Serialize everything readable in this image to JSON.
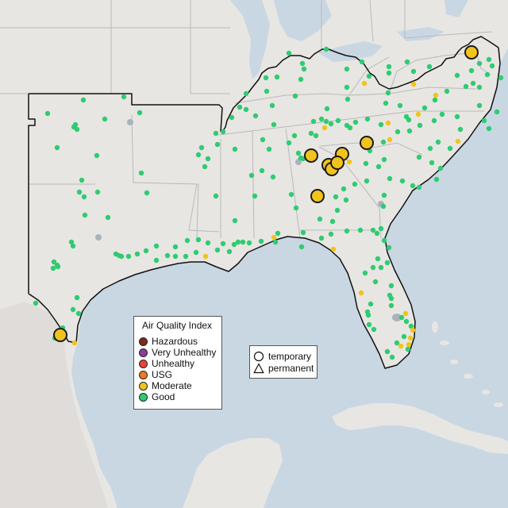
{
  "colors": {
    "ocean": "#c9d7e3",
    "land": "#e8e6e3",
    "land_hills": "#dcdad6",
    "state_border": "#b9b9b9",
    "region_border": "#111111",
    "water_gray": "#a8b3bd"
  },
  "legend": {
    "title": "Air Quality Index",
    "items": [
      {
        "label": "Hazardous",
        "color": "#7e2a1e"
      },
      {
        "label": "Very Unhealthy",
        "color": "#8f3f97"
      },
      {
        "label": "Unhealthy",
        "color": "#e8423a"
      },
      {
        "label": "USG",
        "color": "#f07a1f"
      },
      {
        "label": "Moderate",
        "color": "#f2c31c"
      },
      {
        "label": "Good",
        "color": "#2ecc71"
      }
    ]
  },
  "type_legend": {
    "items": [
      {
        "label": "temporary",
        "icon": "circle-outline-icon"
      },
      {
        "label": "permanent",
        "icon": "triangle-outline-icon"
      }
    ]
  },
  "monitors_good": [
    [
      60,
      143
    ],
    [
      105,
      126
    ],
    [
      132,
      150
    ],
    [
      156,
      122
    ],
    [
      176,
      142
    ],
    [
      93,
      160
    ],
    [
      95,
      157
    ],
    [
      97,
      163
    ],
    [
      72,
      186
    ],
    [
      122,
      196
    ],
    [
      178,
      218
    ],
    [
      103,
      227
    ],
    [
      100,
      242
    ],
    [
      123,
      242
    ],
    [
      106,
      248
    ],
    [
      185,
      243
    ],
    [
      136,
      274
    ],
    [
      107,
      271
    ],
    [
      90,
      305
    ],
    [
      92,
      310
    ],
    [
      68,
      330
    ],
    [
      72,
      334
    ],
    [
      73,
      336
    ],
    [
      67,
      338
    ],
    [
      146,
      320
    ],
    [
      150,
      322
    ],
    [
      153,
      323
    ],
    [
      173,
      320
    ],
    [
      184,
      316
    ],
    [
      197,
      310
    ],
    [
      221,
      311
    ],
    [
      236,
      303
    ],
    [
      250,
      302
    ],
    [
      262,
      306
    ],
    [
      281,
      307
    ],
    [
      295,
      308
    ],
    [
      300,
      305
    ],
    [
      314,
      306
    ],
    [
      329,
      304
    ],
    [
      350,
      294
    ],
    [
      382,
      293
    ],
    [
      405,
      300
    ],
    [
      417,
      295
    ],
    [
      437,
      291
    ],
    [
      454,
      290
    ],
    [
      470,
      290
    ],
    [
      475,
      294
    ],
    [
      262,
      200
    ],
    [
      258,
      210
    ],
    [
      272,
      247
    ],
    [
      272,
      168
    ],
    [
      274,
      182
    ],
    [
      281,
      166
    ],
    [
      292,
      148
    ],
    [
      302,
      135
    ],
    [
      296,
      188
    ],
    [
      310,
      118
    ],
    [
      322,
      146
    ],
    [
      335,
      98
    ],
    [
      349,
      97
    ],
    [
      364,
      67
    ],
    [
      381,
      80
    ],
    [
      383,
      87
    ],
    [
      379,
      100
    ],
    [
      411,
      62
    ],
    [
      437,
      87
    ],
    [
      456,
      78
    ],
    [
      465,
      96
    ],
    [
      437,
      110
    ],
    [
      438,
      125
    ],
    [
      412,
      137
    ],
    [
      372,
      121
    ],
    [
      343,
      133
    ],
    [
      336,
      115
    ],
    [
      310,
      138
    ],
    [
      345,
      157
    ],
    [
      364,
      180
    ],
    [
      376,
      193
    ],
    [
      379,
      199
    ],
    [
      382,
      200
    ],
    [
      339,
      188
    ],
    [
      331,
      176
    ],
    [
      395,
      153
    ],
    [
      405,
      150
    ],
    [
      411,
      153
    ],
    [
      417,
      156
    ],
    [
      426,
      152
    ],
    [
      437,
      158
    ],
    [
      441,
      161
    ],
    [
      448,
      154
    ],
    [
      463,
      150
    ],
    [
      480,
      157
    ],
    [
      486,
      130
    ],
    [
      489,
      117
    ],
    [
      504,
      133
    ],
    [
      512,
      147
    ],
    [
      515,
      151
    ],
    [
      516,
      165
    ],
    [
      501,
      166
    ],
    [
      483,
      179
    ],
    [
      466,
      190
    ],
    [
      461,
      206
    ],
    [
      477,
      210
    ],
    [
      484,
      201
    ],
    [
      491,
      225
    ],
    [
      507,
      228
    ],
    [
      520,
      234
    ],
    [
      528,
      236
    ],
    [
      550,
      226
    ],
    [
      555,
      212
    ],
    [
      544,
      205
    ],
    [
      528,
      198
    ],
    [
      542,
      187
    ],
    [
      552,
      179
    ],
    [
      567,
      187
    ],
    [
      580,
      163
    ],
    [
      576,
      147
    ],
    [
      557,
      144
    ],
    [
      547,
      152
    ],
    [
      529,
      158
    ],
    [
      535,
      136
    ],
    [
      548,
      126
    ],
    [
      563,
      115
    ],
    [
      576,
      95
    ],
    [
      587,
      109
    ],
    [
      604,
      110
    ],
    [
      614,
      94
    ],
    [
      616,
      75
    ],
    [
      604,
      80
    ],
    [
      594,
      89
    ],
    [
      596,
      105
    ],
    [
      604,
      133
    ],
    [
      610,
      152
    ],
    [
      616,
      162
    ],
    [
      626,
      141
    ],
    [
      631,
      98
    ],
    [
      620,
      83
    ],
    [
      541,
      84
    ],
    [
      521,
      90
    ],
    [
      513,
      78
    ],
    [
      490,
      84
    ],
    [
      490,
      92
    ],
    [
      462,
      228
    ],
    [
      447,
      232
    ],
    [
      433,
      238
    ],
    [
      436,
      252
    ],
    [
      423,
      248
    ],
    [
      425,
      265
    ],
    [
      419,
      279
    ],
    [
      403,
      276
    ],
    [
      373,
      262
    ],
    [
      367,
      245
    ],
    [
      344,
      223
    ],
    [
      330,
      215
    ],
    [
      321,
      247
    ],
    [
      296,
      278
    ],
    [
      371,
      171
    ],
    [
      398,
      171
    ],
    [
      392,
      168
    ],
    [
      317,
      221
    ],
    [
      254,
      186
    ],
    [
      250,
      195
    ],
    [
      484,
      246
    ],
    [
      483,
      260
    ],
    [
      480,
      288
    ],
    [
      484,
      303
    ],
    [
      490,
      312
    ],
    [
      488,
      331
    ],
    [
      476,
      326
    ],
    [
      480,
      337
    ],
    [
      470,
      337
    ],
    [
      460,
      344
    ],
    [
      473,
      355
    ],
    [
      467,
      383
    ],
    [
      463,
      393
    ],
    [
      464,
      397
    ],
    [
      465,
      409
    ],
    [
      471,
      415
    ],
    [
      493,
      360
    ],
    [
      491,
      372
    ],
    [
      493,
      376
    ],
    [
      493,
      385
    ],
    [
      506,
      400
    ],
    [
      512,
      405
    ],
    [
      509,
      424
    ],
    [
      514,
      440
    ],
    [
      518,
      411
    ],
    [
      500,
      432
    ],
    [
      494,
      450
    ],
    [
      488,
      443
    ],
    [
      380,
      311
    ],
    [
      347,
      305
    ],
    [
      306,
      305
    ],
    [
      289,
      317
    ],
    [
      274,
      315
    ],
    [
      247,
      318
    ],
    [
      234,
      323
    ],
    [
      221,
      323
    ],
    [
      211,
      322
    ],
    [
      197,
      328
    ],
    [
      162,
      323
    ],
    [
      45,
      382
    ],
    [
      97,
      375
    ],
    [
      92,
      390
    ],
    [
      99,
      395
    ],
    [
      69,
      426
    ],
    [
      79,
      413
    ]
  ],
  "monitors_moderate_small": [
    [
      459,
      105
    ],
    [
      521,
      106
    ],
    [
      549,
      120
    ],
    [
      489,
      155
    ],
    [
      409,
      161
    ],
    [
      440,
      204
    ],
    [
      527,
      144
    ],
    [
      577,
      178
    ],
    [
      491,
      176
    ],
    [
      345,
      299
    ],
    [
      259,
      323
    ],
    [
      420,
      314
    ],
    [
      455,
      369
    ],
    [
      511,
      395
    ],
    [
      520,
      416
    ],
    [
      517,
      426
    ],
    [
      505,
      436
    ],
    [
      515,
      434
    ],
    [
      94,
      432
    ]
  ],
  "monitors_moderate_large": [
    [
      594,
      66
    ],
    [
      462,
      180
    ],
    [
      392,
      196
    ],
    [
      431,
      194
    ],
    [
      414,
      208
    ],
    [
      418,
      213
    ],
    [
      425,
      205
    ],
    [
      400,
      247
    ],
    [
      76,
      422
    ]
  ],
  "monitors_gray": [
    [
      164,
      154
    ],
    [
      124,
      299
    ],
    [
      376,
      204
    ],
    [
      480,
      257
    ]
  ]
}
